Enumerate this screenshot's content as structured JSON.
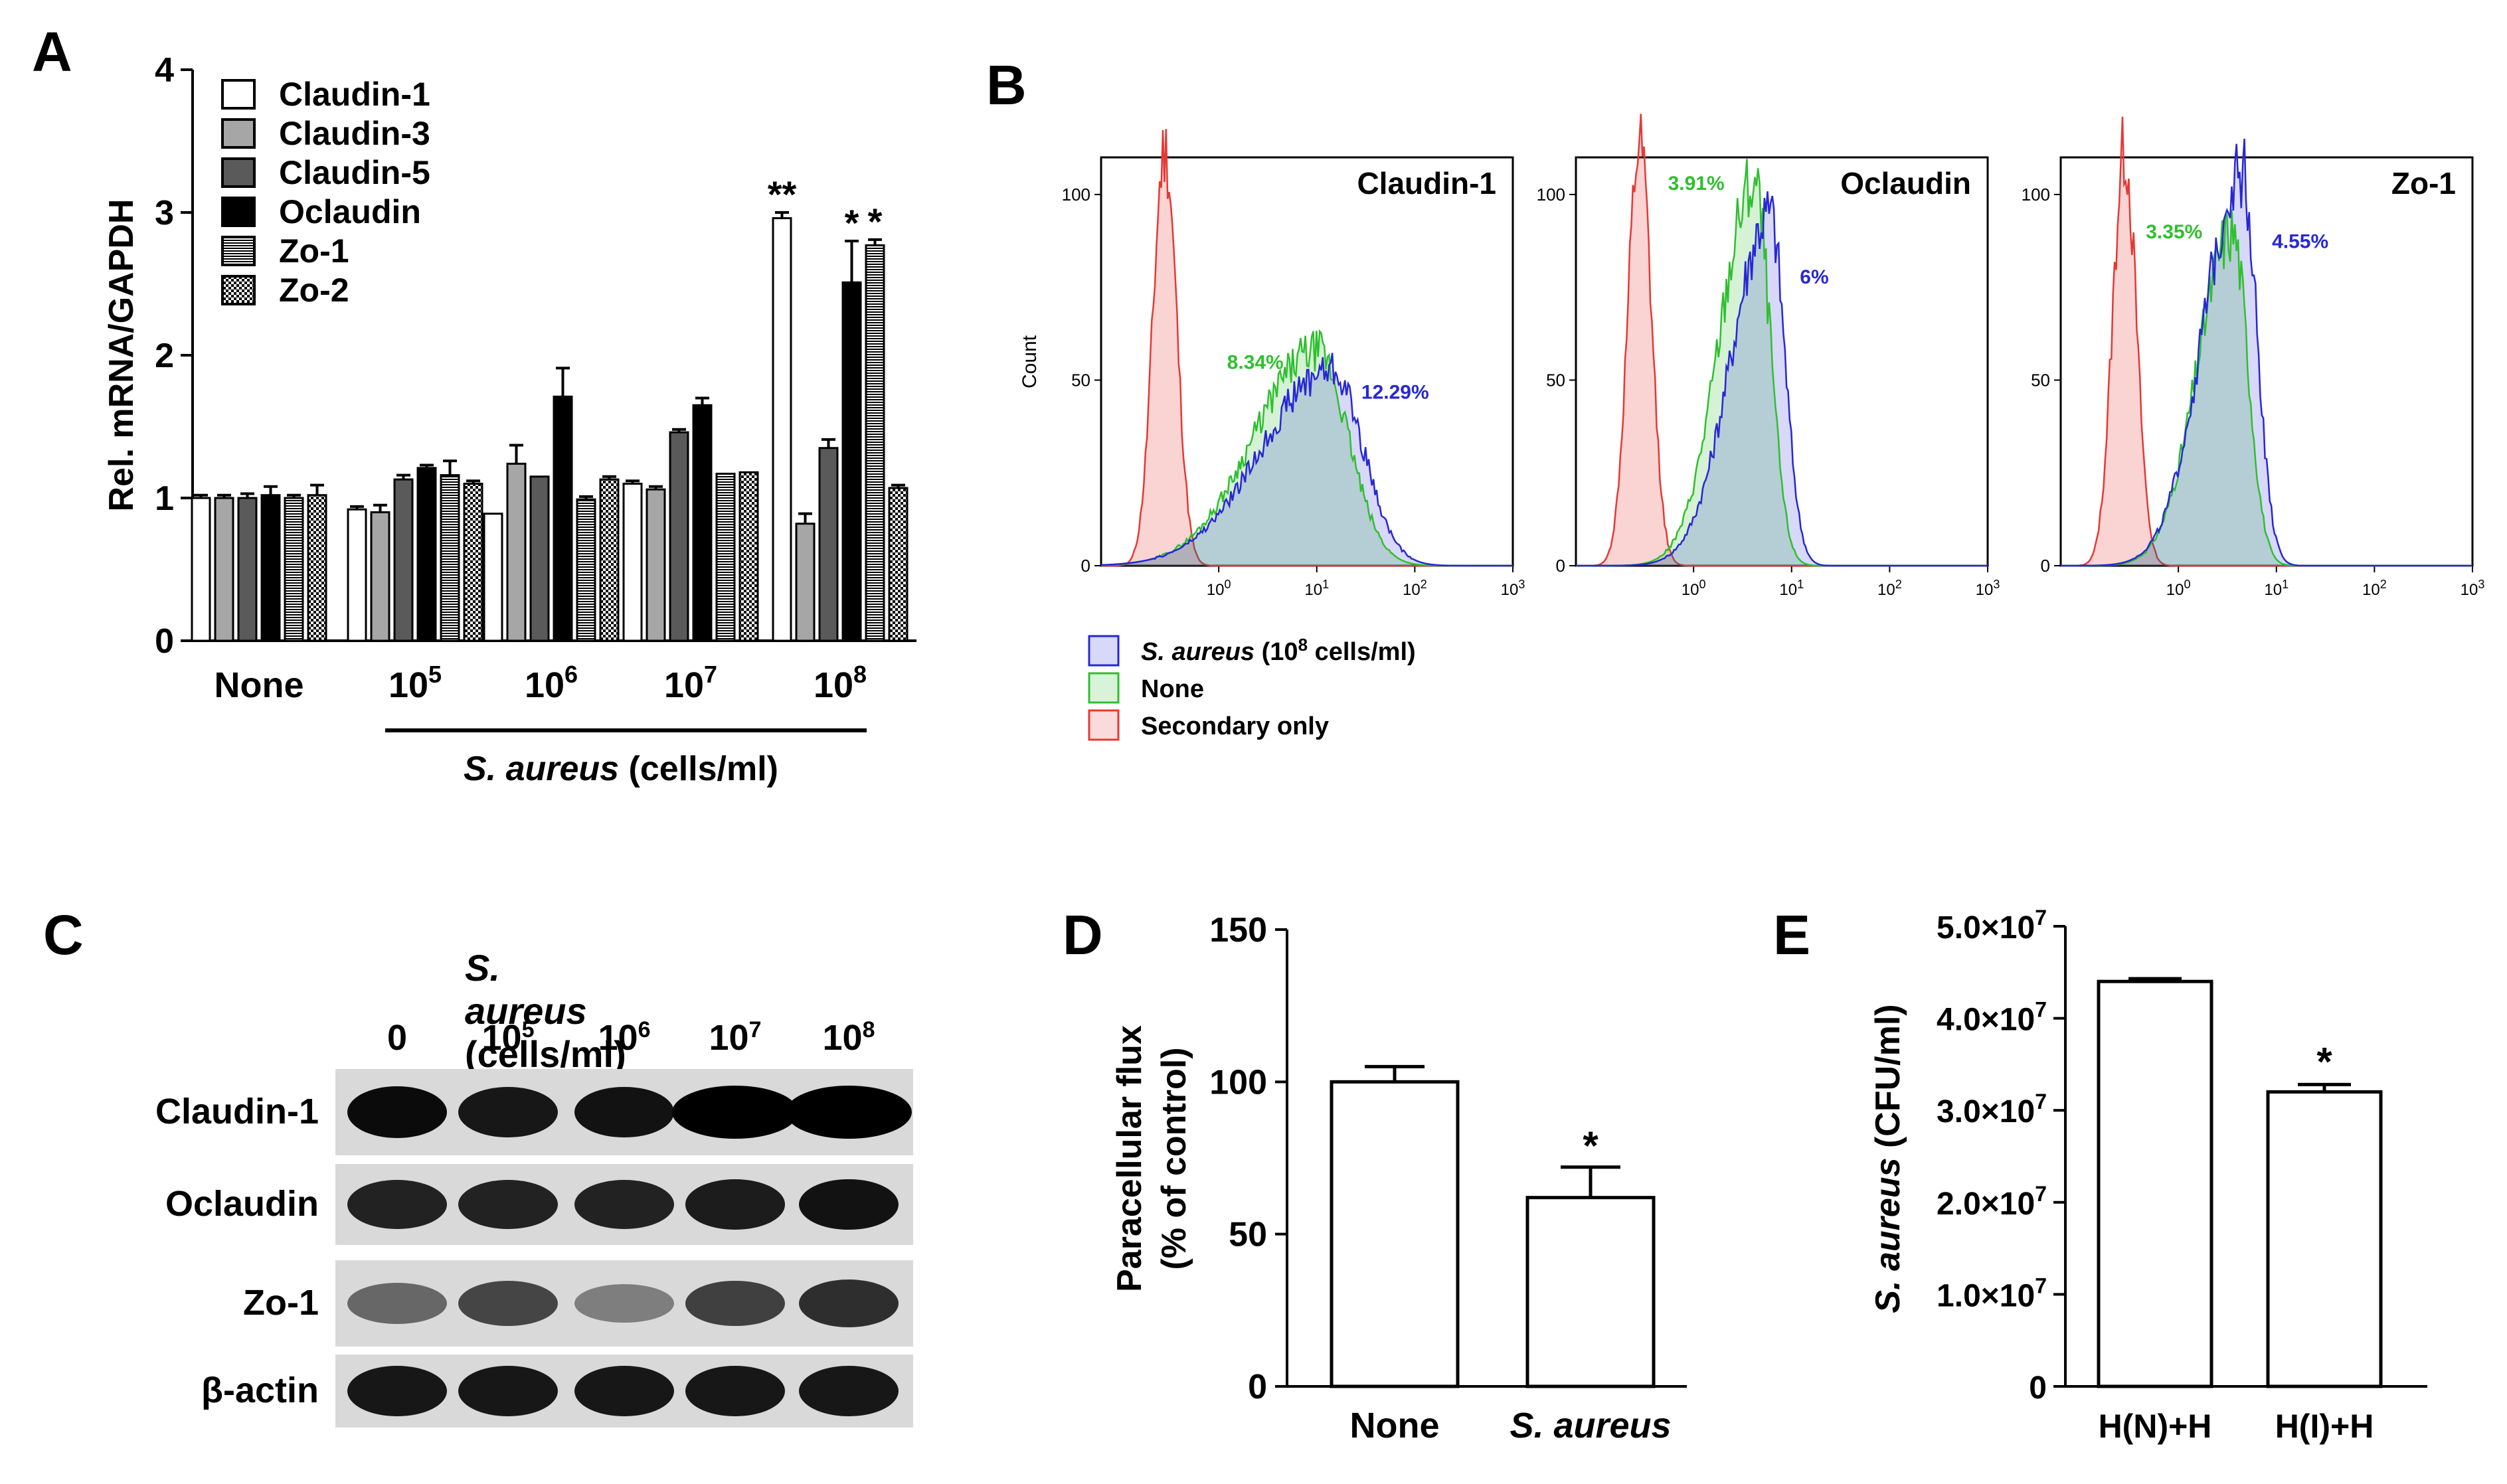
{
  "panels": {
    "a": "A",
    "b": "B",
    "c": "C",
    "d": "D",
    "e": "E"
  },
  "colors": {
    "red": "#e53935",
    "green": "#2fbf2f",
    "blue": "#2727d6"
  },
  "chart_data": [
    {
      "id": "A",
      "type": "bar",
      "ylabel": "Rel. mRNA/GAPDH",
      "ylim": [
        0,
        4
      ],
      "yticks": [
        "0",
        "1",
        "2",
        "3",
        "4"
      ],
      "categories": [
        "None",
        "10",
        "10",
        "10",
        "10"
      ],
      "category_exponents": [
        "",
        "5",
        "6",
        "7",
        "8"
      ],
      "xgroup_label": {
        "italic": "S. aureus",
        "rest": " (cells/ml)"
      },
      "legend_position": "top-left",
      "series": [
        {
          "name": "Claudin-1",
          "fill": "white",
          "values": [
            1.0,
            0.92,
            0.89,
            1.1,
            2.96
          ],
          "errors": [
            0.02,
            0.02,
            0.0,
            0.02,
            0.04
          ]
        },
        {
          "name": "Claudin-3",
          "fill": "lightgray",
          "values": [
            1.0,
            0.9,
            1.24,
            1.06,
            0.82
          ],
          "errors": [
            0.02,
            0.05,
            0.13,
            0.02,
            0.07
          ]
        },
        {
          "name": "Claudin-5",
          "fill": "darkgray",
          "values": [
            1.0,
            1.13,
            1.15,
            1.46,
            1.35
          ],
          "errors": [
            0.03,
            0.03,
            0.0,
            0.02,
            0.06
          ]
        },
        {
          "name": "Oclaudin",
          "fill": "black",
          "values": [
            1.02,
            1.21,
            1.71,
            1.65,
            2.51
          ],
          "errors": [
            0.06,
            0.02,
            0.2,
            0.05,
            0.29
          ]
        },
        {
          "name": "Zo-1",
          "fill": "hlines",
          "values": [
            1.0,
            1.16,
            0.99,
            1.17,
            2.77
          ],
          "errors": [
            0.02,
            0.1,
            0.02,
            0.0,
            0.04
          ]
        },
        {
          "name": "Zo-2",
          "fill": "checker",
          "values": [
            1.02,
            1.1,
            1.13,
            1.18,
            1.07
          ],
          "errors": [
            0.07,
            0.02,
            0.02,
            0.0,
            0.02
          ]
        }
      ],
      "annotations": [
        {
          "text": "**",
          "category": 4,
          "series": 0
        },
        {
          "text": "*",
          "category": 4,
          "series": 3
        },
        {
          "text": "*",
          "category": 4,
          "series": 4
        }
      ]
    },
    {
      "id": "B",
      "type": "histogram",
      "ylabel": "Count",
      "yticks": [
        "0",
        "50",
        "100"
      ],
      "xticks": [
        {
          "base": "10",
          "exp": "0"
        },
        {
          "base": "10",
          "exp": "1"
        },
        {
          "base": "10",
          "exp": "2"
        },
        {
          "base": "10",
          "exp": "3"
        }
      ],
      "xscale": "log",
      "xlim_log10": [
        -1.2,
        3
      ],
      "ylim": [
        0,
        110
      ],
      "legend": [
        {
          "italic": "S. aureus",
          "rest": " (10",
          "sup": "8",
          "rest2": " cells/ml)",
          "color": "blue"
        },
        {
          "italic": "",
          "rest": "None",
          "sup": "",
          "rest2": "",
          "color": "green"
        },
        {
          "italic": "",
          "rest": "Secondary only",
          "sup": "",
          "rest2": "",
          "color": "red"
        }
      ],
      "subplots": [
        {
          "title": "Claudin-1",
          "secondary_peak_log10": -0.55,
          "secondary_peak_count": 112,
          "none_pct": "8.34%",
          "none_peak_log10": 1.0,
          "none_peak_count": 58,
          "saureus_pct": "12.29%",
          "saureus_peak_log10": 1.15,
          "saureus_peak_count": 53
        },
        {
          "title": "Oclaudin",
          "secondary_peak_log10": -0.55,
          "secondary_peak_count": 112,
          "none_pct": "3.91%",
          "none_peak_log10": 0.62,
          "none_peak_count": 103,
          "saureus_pct": "6%",
          "saureus_peak_log10": 0.78,
          "saureus_peak_count": 95
        },
        {
          "title": "Zo-1",
          "secondary_peak_log10": -0.55,
          "secondary_peak_count": 112,
          "none_pct": "3.35%",
          "none_peak_log10": 0.55,
          "none_peak_count": 90,
          "saureus_pct": "4.55%",
          "saureus_peak_log10": 0.65,
          "saureus_peak_count": 107
        }
      ]
    },
    {
      "id": "D",
      "type": "bar",
      "ylabel_line1": "Paracellular flux",
      "ylabel_line2": "(% of control)",
      "ylim": [
        0,
        150
      ],
      "yticks": [
        "0",
        "50",
        "100",
        "150"
      ],
      "categories": [
        "None",
        "S. aureus"
      ],
      "values": [
        100,
        62
      ],
      "errors": [
        5,
        10
      ],
      "annotations": [
        {
          "text": "*",
          "category": 1
        }
      ]
    },
    {
      "id": "E",
      "type": "bar",
      "ylabel_italic": "S. aureus",
      "ylabel_rest": " (CFU/ml)",
      "ylim": [
        0,
        50000000
      ],
      "yticks": [
        {
          "m": "0",
          "e": ""
        },
        {
          "m": "1.0×10",
          "e": "7"
        },
        {
          "m": "2.0×10",
          "e": "7"
        },
        {
          "m": "3.0×10",
          "e": "7"
        },
        {
          "m": "4.0×10",
          "e": "7"
        },
        {
          "m": "5.0×10",
          "e": "7"
        }
      ],
      "categories": [
        "H(N)+H",
        "H(I)+H"
      ],
      "values": [
        44000000,
        32000000
      ],
      "errors": [
        300000,
        800000
      ],
      "annotations": [
        {
          "text": "*",
          "category": 1
        }
      ]
    }
  ],
  "western_blot": {
    "title_italic": "S. aureus",
    "title_rest": " (cells/ml)",
    "lanes": [
      {
        "base": "0",
        "exp": ""
      },
      {
        "base": "10",
        "exp": "5"
      },
      {
        "base": "10",
        "exp": "6"
      },
      {
        "base": "10",
        "exp": "7"
      },
      {
        "base": "10",
        "exp": "8"
      }
    ],
    "rows": [
      {
        "label": "Claudin-1",
        "intensity": [
          0.95,
          0.9,
          0.92,
          1.0,
          1.0
        ]
      },
      {
        "label": "Oclaudin",
        "intensity": [
          0.85,
          0.85,
          0.85,
          0.88,
          0.92
        ]
      },
      {
        "label": "Zo-1",
        "intensity": [
          0.55,
          0.7,
          0.45,
          0.72,
          0.8
        ]
      },
      {
        "label": "β-actin",
        "intensity": [
          0.9,
          0.9,
          0.9,
          0.9,
          0.9
        ]
      }
    ]
  }
}
